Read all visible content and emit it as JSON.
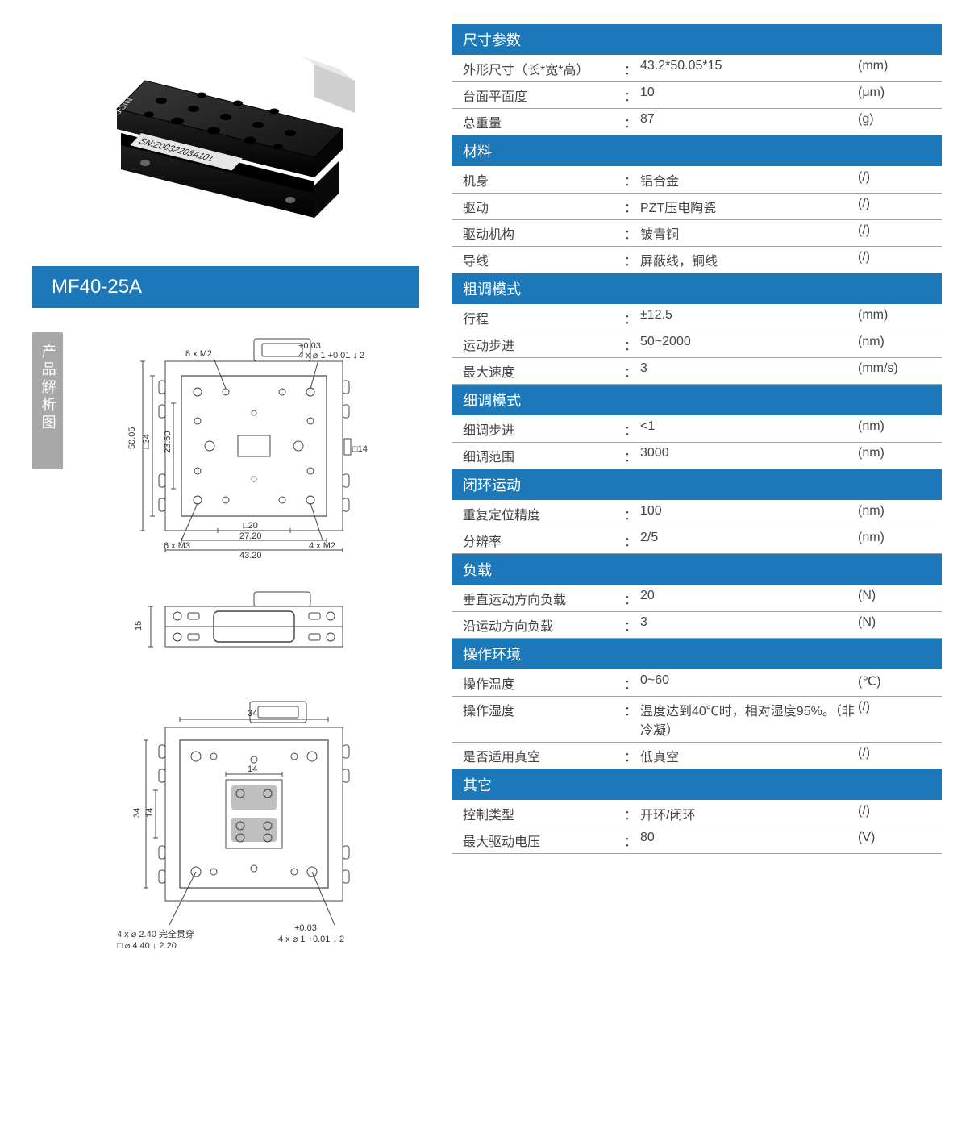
{
  "product": {
    "model": "MF40-25A",
    "diagram_tab_label": "产品解析图"
  },
  "colors": {
    "accent": "#1c78b8",
    "tab_gray": "#a8a8a8",
    "row_border": "#9aa0a6",
    "text": "#444444"
  },
  "diagrams": {
    "top_view": {
      "hole_callouts": [
        "8 x M2",
        "6 x M3",
        "4 x M2"
      ],
      "tol_callout_top": "+0.03",
      "tol_callout_top2": "4 x ⌀ 1 +0.01 ↓ 2",
      "dims": {
        "outer_w": "43.20",
        "inner_w": "27.20",
        "slot_w_label": "□20",
        "outer_h": "50.05",
        "mid_h": "□34",
        "inner_h": "23.60",
        "right_slot": "□14"
      }
    },
    "side_view": {
      "height": "15"
    },
    "bottom_view": {
      "top_w": "34",
      "inner_w": "14",
      "left_h": "34",
      "inner_h": "14",
      "callout_left": "4 x ⌀ 2.40 完全贯穿",
      "callout_left2": "□ ⌀ 4.40 ↓ 2.20",
      "callout_right_top": "+0.03",
      "callout_right": "4 x ⌀ 1 +0.01 ↓ 2"
    }
  },
  "spec_sections": [
    {
      "title": "尺寸参数",
      "rows": [
        {
          "label": "外形尺寸（长*宽*高）",
          "value": "43.2*50.05*15",
          "unit": "(mm)"
        },
        {
          "label": "台面平面度",
          "value": "10",
          "unit": "(μm)"
        },
        {
          "label": "总重量",
          "value": "87",
          "unit": "(g)"
        }
      ]
    },
    {
      "title": "材料",
      "rows": [
        {
          "label": "机身",
          "value": "铝合金",
          "unit": "(/)"
        },
        {
          "label": "驱动",
          "value": "PZT压电陶瓷",
          "unit": "(/)"
        },
        {
          "label": "驱动机构",
          "value": "铍青铜",
          "unit": "(/)"
        },
        {
          "label": "导线",
          "value": "屏蔽线，铜线",
          "unit": "(/)"
        }
      ]
    },
    {
      "title": "粗调模式",
      "rows": [
        {
          "label": "行程",
          "value": "±12.5",
          "unit": "(mm)"
        },
        {
          "label": "运动步进",
          "value": "50~2000",
          "unit": "(nm)"
        },
        {
          "label": "最大速度",
          "value": "3",
          "unit": "(mm/s)"
        }
      ]
    },
    {
      "title": "细调模式",
      "rows": [
        {
          "label": "细调步进",
          "value": "<1",
          "unit": "(nm)"
        },
        {
          "label": "细调范围",
          "value": "3000",
          "unit": "(nm)"
        }
      ]
    },
    {
      "title": "闭环运动",
      "rows": [
        {
          "label": "重复定位精度",
          "value": "100",
          "unit": "(nm)"
        },
        {
          "label": "分辨率",
          "value": "2/5",
          "unit": "(nm)"
        }
      ]
    },
    {
      "title": "负载",
      "rows": [
        {
          "label": "垂直运动方向负载",
          "value": "20",
          "unit": "(N)"
        },
        {
          "label": "沿运动方向负载",
          "value": "3",
          "unit": "(N)"
        }
      ]
    },
    {
      "title": "操作环境",
      "rows": [
        {
          "label": "操作温度",
          "value": "0~60",
          "unit": "(℃)"
        },
        {
          "label": "操作湿度",
          "value": "温度达到40℃时，相对湿度95%。（非冷凝）",
          "unit": "(/)"
        },
        {
          "label": "是否适用真空",
          "value": "低真空",
          "unit": "(/)"
        }
      ]
    },
    {
      "title": "其它",
      "rows": [
        {
          "label": "控制类型",
          "value": "开环/闭环",
          "unit": "(/)"
        },
        {
          "label": "最大驱动电压",
          "value": "80",
          "unit": "(V)"
        }
      ]
    }
  ]
}
